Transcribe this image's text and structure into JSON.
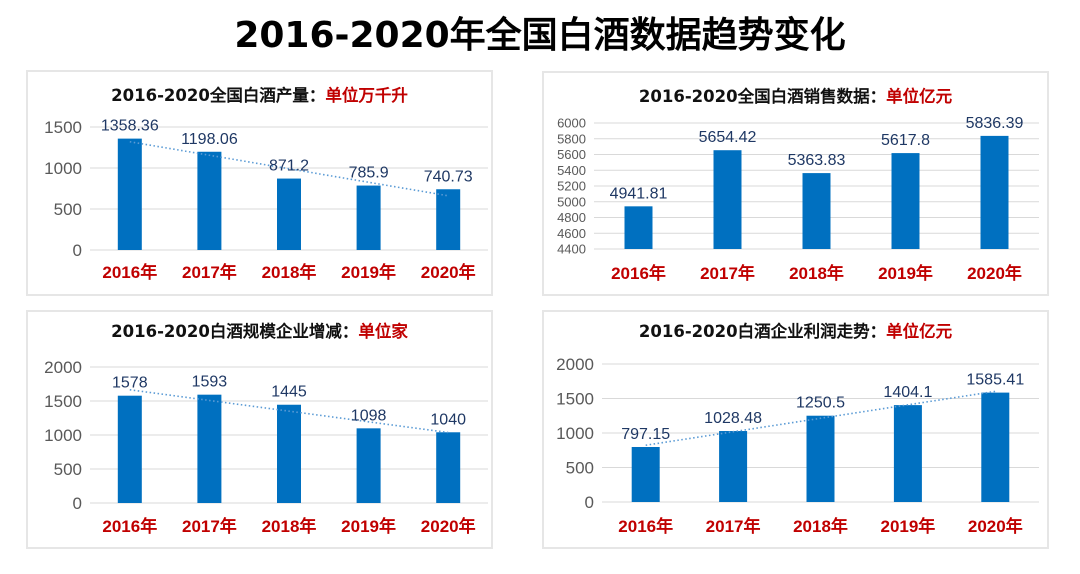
{
  "title": "2016-2020年全国白酒数据趋势变化",
  "colors": {
    "bar": "#0070c0",
    "trend": "#5b9bd5",
    "data_label": "#1f3864",
    "year_label": "#c00000",
    "axis_label": "#595959",
    "grid": "#d9d9d9"
  },
  "panels": [
    {
      "title": "2016-2020全国白酒产量：",
      "unit": "单位万千升"
    },
    {
      "title": "2016-2020全国白酒销售数据：",
      "unit": "单位亿元"
    },
    {
      "title": "2016-2020白酒规模企业增减：",
      "unit": "单位家"
    },
    {
      "title": "2016-2020白酒企业利润走势：",
      "unit": "单位亿元"
    }
  ],
  "chart_data": [
    {
      "type": "bar",
      "title": "2016-2020全国白酒产量：单位万千升",
      "categories": [
        "2016年",
        "2017年",
        "2018年",
        "2019年",
        "2020年"
      ],
      "values": [
        1358.36,
        1198.06,
        871.2,
        785.9,
        740.73
      ],
      "labels": [
        "1358.36",
        "1198.06",
        "871.2",
        "785.9",
        "740.73"
      ],
      "yticks": [
        0,
        500,
        1000,
        1500
      ],
      "ylim": [
        0,
        1500
      ],
      "trendline": "linear",
      "grid": true
    },
    {
      "type": "bar",
      "title": "2016-2020全国白酒销售数据：单位亿元",
      "categories": [
        "2016年",
        "2017年",
        "2018年",
        "2019年",
        "2020年"
      ],
      "values": [
        4941.81,
        5654.42,
        5363.83,
        5617.8,
        5836.39
      ],
      "labels": [
        "4941.81",
        "5654.42",
        "5363.83",
        "5617.8",
        "5836.39"
      ],
      "yticks": [
        4400,
        4600,
        4800,
        5000,
        5200,
        5400,
        5600,
        5800,
        6000
      ],
      "ylim": [
        4400,
        6000
      ],
      "trendline": "none",
      "grid": true
    },
    {
      "type": "bar",
      "title": "2016-2020白酒规模企业增减：单位家",
      "categories": [
        "2016年",
        "2017年",
        "2018年",
        "2019年",
        "2020年"
      ],
      "values": [
        1578,
        1593,
        1445,
        1098,
        1040
      ],
      "labels": [
        "1578",
        "1593",
        "1445",
        "1098",
        "1040"
      ],
      "yticks": [
        0,
        500,
        1000,
        1500,
        2000
      ],
      "ylim": [
        0,
        2000
      ],
      "trendline": "linear",
      "grid": true
    },
    {
      "type": "bar",
      "title": "2016-2020白酒企业利润走势：单位亿元",
      "categories": [
        "2016年",
        "2017年",
        "2018年",
        "2019年",
        "2020年"
      ],
      "values": [
        797.15,
        1028.48,
        1250.5,
        1404.1,
        1585.41
      ],
      "labels": [
        "797.15",
        "1028.48",
        "1250.5",
        "1404.1",
        "1585.41"
      ],
      "yticks": [
        0,
        500,
        1000,
        1500,
        2000
      ],
      "ylim": [
        0,
        2000
      ],
      "trendline": "linear",
      "grid": true
    }
  ]
}
